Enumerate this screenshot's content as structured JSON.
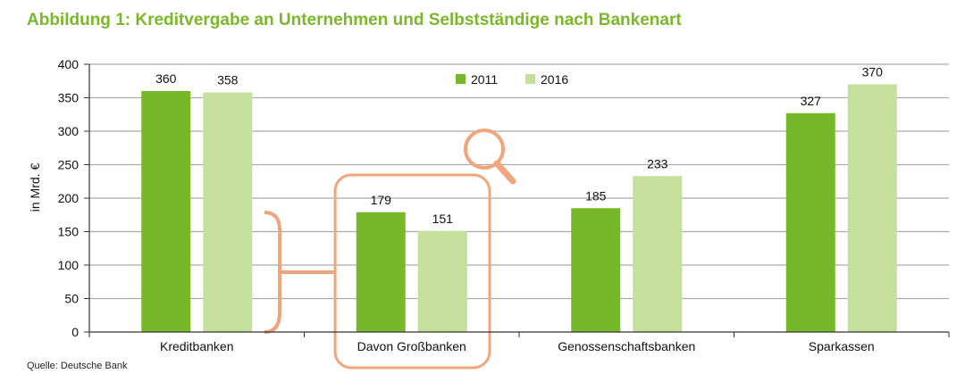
{
  "title": "Abbildung 1: Kreditvergabe an Unternehmen und Selbstständige nach Bankenart",
  "source": "Quelle: Deutsche Bank",
  "colors": {
    "series_2011": "#76b82a",
    "series_2016": "#c5df9d",
    "title": "#7ab828",
    "highlight": "#f0a57d",
    "grid": "#aaaaaa"
  },
  "chart_data": {
    "type": "bar",
    "ylabel": "in Mrd. €",
    "xlabel": "",
    "ylim": [
      0,
      400
    ],
    "yticks": [
      0,
      50,
      100,
      150,
      200,
      250,
      300,
      350,
      400
    ],
    "categories": [
      "Kreditbanken",
      "Davon Großbanken",
      "Genossenschaftsbanken",
      "Sparkassen"
    ],
    "series": [
      {
        "name": "2011",
        "values": [
          360,
          179,
          185,
          327
        ]
      },
      {
        "name": "2016",
        "values": [
          358,
          151,
          233,
          370
        ]
      }
    ],
    "legend_position": "top-center",
    "grid": true,
    "highlighted_category": "Davon Großbanken",
    "highlight_icon": "magnifier-icon"
  }
}
